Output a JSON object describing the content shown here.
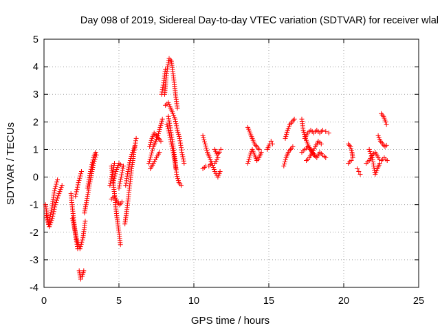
{
  "chart_data": {
    "type": "scatter",
    "title": "Day 098 of 2019, Sidereal Day-to-day VTEC variation (SDTVAR) for receiver wlal",
    "xlabel": "GPS time / hours",
    "ylabel": "SDTVAR / TECUs",
    "xlim": [
      0,
      25
    ],
    "ylim": [
      -4,
      5
    ],
    "grid": true,
    "marker": "+",
    "series_color": "#ff0000",
    "x_ticks": [
      0,
      5,
      10,
      15,
      20,
      25
    ],
    "x_tick_labels": [
      "0",
      "5",
      "10",
      "15",
      "20",
      "25"
    ],
    "y_ticks": [
      -4,
      -3,
      -2,
      -1,
      0,
      1,
      2,
      3,
      4,
      5
    ],
    "y_tick_labels": [
      "-4",
      "-3",
      "-2",
      "-1",
      "0",
      "1",
      "2",
      "3",
      "4",
      "5"
    ],
    "tracks": [
      [
        [
          0.1,
          -1.0
        ],
        [
          0.3,
          -1.7
        ],
        [
          0.5,
          -1.2
        ],
        [
          0.7,
          -0.5
        ],
        [
          0.9,
          -0.1
        ]
      ],
      [
        [
          0.15,
          -1.4
        ],
        [
          0.35,
          -1.8
        ],
        [
          0.55,
          -1.5
        ],
        [
          0.75,
          -1.0
        ],
        [
          1.0,
          -0.6
        ],
        [
          1.2,
          -0.3
        ]
      ],
      [
        [
          1.8,
          -0.6
        ],
        [
          1.95,
          -1.4
        ],
        [
          2.1,
          -2.1
        ],
        [
          2.25,
          -2.6
        ]
      ],
      [
        [
          1.9,
          -1.5
        ],
        [
          2.05,
          -1.9
        ],
        [
          2.2,
          -2.3
        ],
        [
          2.4,
          -2.6
        ],
        [
          2.6,
          -2.2
        ],
        [
          2.75,
          -1.6
        ]
      ],
      [
        [
          2.1,
          -0.7
        ],
        [
          2.3,
          -0.2
        ],
        [
          2.5,
          0.2
        ]
      ],
      [
        [
          2.35,
          -3.4
        ],
        [
          2.45,
          -3.7
        ],
        [
          2.55,
          -3.6
        ],
        [
          2.65,
          -3.4
        ]
      ],
      [
        [
          2.7,
          -1.3
        ],
        [
          2.9,
          -0.7
        ],
        [
          3.1,
          -0.1
        ],
        [
          3.3,
          0.5
        ],
        [
          3.5,
          0.8
        ]
      ],
      [
        [
          2.9,
          -0.4
        ],
        [
          3.1,
          0.2
        ],
        [
          3.3,
          0.7
        ],
        [
          3.45,
          0.9
        ]
      ],
      [
        [
          4.4,
          -0.3
        ],
        [
          4.55,
          0.1
        ],
        [
          4.7,
          0.5
        ]
      ],
      [
        [
          4.5,
          0.4
        ],
        [
          4.7,
          -0.6
        ],
        [
          4.85,
          -1.4
        ],
        [
          5.0,
          -2.0
        ],
        [
          5.1,
          -2.45
        ]
      ],
      [
        [
          4.6,
          -0.2
        ],
        [
          4.8,
          0.2
        ],
        [
          5.0,
          0.5
        ],
        [
          5.2,
          0.4
        ]
      ],
      [
        [
          4.5,
          -0.8
        ],
        [
          4.7,
          -0.7
        ],
        [
          4.9,
          -0.9
        ],
        [
          5.05,
          -1.0
        ],
        [
          5.2,
          -0.9
        ]
      ],
      [
        [
          5.0,
          -0.4
        ],
        [
          5.15,
          0.0
        ],
        [
          5.3,
          0.4
        ]
      ],
      [
        [
          5.4,
          -1.7
        ],
        [
          5.55,
          -1.1
        ],
        [
          5.7,
          -0.4
        ],
        [
          5.85,
          0.3
        ],
        [
          6.0,
          0.9
        ],
        [
          6.15,
          1.4
        ]
      ],
      [
        [
          5.45,
          -0.3
        ],
        [
          5.6,
          0.2
        ],
        [
          5.75,
          0.6
        ],
        [
          5.9,
          0.9
        ],
        [
          6.05,
          1.1
        ]
      ],
      [
        [
          7.0,
          0.5
        ],
        [
          7.15,
          0.8
        ],
        [
          7.3,
          1.1
        ],
        [
          7.45,
          1.3
        ],
        [
          7.6,
          1.5
        ],
        [
          7.75,
          1.8
        ],
        [
          7.9,
          2.1
        ]
      ],
      [
        [
          7.05,
          1.1
        ],
        [
          7.2,
          1.4
        ],
        [
          7.35,
          1.6
        ],
        [
          7.5,
          1.5
        ],
        [
          7.65,
          1.4
        ],
        [
          7.8,
          1.3
        ]
      ],
      [
        [
          7.1,
          0.3
        ],
        [
          7.3,
          0.5
        ],
        [
          7.5,
          0.7
        ],
        [
          7.7,
          0.9
        ]
      ],
      [
        [
          8.05,
          3.0
        ],
        [
          8.15,
          3.6
        ],
        [
          8.25,
          4.0
        ],
        [
          8.35,
          4.3
        ],
        [
          8.5,
          4.2
        ],
        [
          8.65,
          3.6
        ],
        [
          8.8,
          2.9
        ],
        [
          8.9,
          2.5
        ]
      ],
      [
        [
          8.1,
          2.6
        ],
        [
          8.3,
          2.7
        ],
        [
          8.45,
          2.5
        ],
        [
          8.6,
          2.3
        ],
        [
          8.75,
          2.1
        ],
        [
          8.9,
          1.7
        ],
        [
          9.05,
          1.4
        ],
        [
          9.2,
          0.9
        ],
        [
          9.35,
          0.5
        ]
      ],
      [
        [
          8.3,
          2.2
        ],
        [
          8.45,
          1.7
        ],
        [
          8.6,
          1.2
        ],
        [
          8.75,
          0.6
        ],
        [
          8.85,
          0.1
        ],
        [
          9.0,
          -0.2
        ],
        [
          9.15,
          -0.3
        ]
      ],
      [
        [
          8.2,
          1.9
        ],
        [
          8.35,
          1.6
        ],
        [
          8.5,
          1.2
        ],
        [
          8.65,
          0.8
        ],
        [
          8.8,
          0.3
        ]
      ],
      [
        [
          7.85,
          3.0
        ],
        [
          8.0,
          3.5
        ],
        [
          8.1,
          3.9
        ]
      ],
      [
        [
          10.6,
          1.5
        ],
        [
          10.75,
          1.2
        ],
        [
          10.9,
          0.9
        ],
        [
          11.05,
          0.7
        ],
        [
          11.2,
          0.5
        ],
        [
          11.4,
          0.5
        ],
        [
          11.6,
          0.7
        ]
      ],
      [
        [
          10.6,
          0.3
        ],
        [
          10.8,
          0.4
        ],
        [
          11.0,
          0.4
        ],
        [
          11.2,
          0.5
        ],
        [
          11.4,
          0.2
        ],
        [
          11.6,
          0.0
        ],
        [
          11.75,
          0.2
        ]
      ],
      [
        [
          11.4,
          1.0
        ],
        [
          11.55,
          0.8
        ],
        [
          11.7,
          0.9
        ],
        [
          11.8,
          1.0
        ]
      ],
      [
        [
          13.6,
          1.8
        ],
        [
          13.75,
          1.6
        ],
        [
          13.9,
          1.4
        ],
        [
          14.05,
          1.2
        ],
        [
          14.2,
          1.1
        ],
        [
          14.35,
          1.0
        ]
      ],
      [
        [
          13.6,
          0.5
        ],
        [
          13.75,
          0.8
        ],
        [
          13.9,
          1.0
        ],
        [
          14.05,
          0.8
        ],
        [
          14.2,
          0.6
        ],
        [
          14.35,
          0.7
        ],
        [
          14.5,
          0.9
        ]
      ],
      [
        [
          14.9,
          1.0
        ],
        [
          15.05,
          1.2
        ],
        [
          15.15,
          1.3
        ],
        [
          15.25,
          1.2
        ]
      ],
      [
        [
          16.0,
          0.4
        ],
        [
          16.15,
          0.7
        ],
        [
          16.3,
          0.9
        ],
        [
          16.45,
          1.0
        ],
        [
          16.6,
          1.1
        ]
      ],
      [
        [
          16.1,
          1.4
        ],
        [
          16.25,
          1.7
        ],
        [
          16.4,
          1.9
        ],
        [
          16.55,
          2.0
        ],
        [
          16.7,
          2.1
        ]
      ],
      [
        [
          17.2,
          2.1
        ],
        [
          17.3,
          1.7
        ],
        [
          17.45,
          1.4
        ],
        [
          17.6,
          1.2
        ],
        [
          17.75,
          1.0
        ],
        [
          17.9,
          0.9
        ],
        [
          18.05,
          0.8
        ]
      ],
      [
        [
          17.2,
          0.9
        ],
        [
          17.4,
          1.0
        ],
        [
          17.6,
          1.1
        ],
        [
          17.8,
          1.0
        ],
        [
          18.0,
          0.8
        ],
        [
          18.2,
          0.7
        ],
        [
          18.4,
          0.9
        ],
        [
          18.6,
          0.8
        ],
        [
          18.8,
          0.7
        ]
      ],
      [
        [
          17.4,
          1.4
        ],
        [
          17.6,
          1.6
        ],
        [
          17.8,
          1.7
        ],
        [
          18.0,
          1.6
        ],
        [
          18.2,
          1.7
        ],
        [
          18.4,
          1.6
        ],
        [
          18.6,
          1.7
        ],
        [
          18.8,
          1.65
        ],
        [
          19.0,
          1.6
        ]
      ],
      [
        [
          17.5,
          0.6
        ],
        [
          17.7,
          0.7
        ],
        [
          17.9,
          0.9
        ],
        [
          18.1,
          1.1
        ],
        [
          18.3,
          1.3
        ],
        [
          18.5,
          1.2
        ]
      ],
      [
        [
          20.3,
          1.2
        ],
        [
          20.45,
          1.1
        ],
        [
          20.55,
          0.9
        ],
        [
          20.6,
          0.7
        ]
      ],
      [
        [
          20.3,
          0.5
        ],
        [
          20.5,
          0.6
        ],
        [
          20.6,
          0.7
        ]
      ],
      [
        [
          20.9,
          0.3
        ],
        [
          21.0,
          0.2
        ],
        [
          21.1,
          0.1
        ]
      ],
      [
        [
          21.5,
          0.5
        ],
        [
          21.7,
          0.6
        ],
        [
          21.9,
          0.8
        ],
        [
          22.1,
          0.9
        ],
        [
          22.3,
          0.7
        ],
        [
          22.5,
          0.6
        ],
        [
          22.7,
          0.7
        ],
        [
          22.9,
          0.6
        ]
      ],
      [
        [
          21.7,
          1.0
        ],
        [
          21.9,
          0.7
        ],
        [
          22.0,
          0.4
        ],
        [
          22.1,
          0.1
        ],
        [
          22.25,
          0.3
        ],
        [
          22.4,
          0.5
        ]
      ],
      [
        [
          22.3,
          1.5
        ],
        [
          22.45,
          1.3
        ],
        [
          22.6,
          1.2
        ],
        [
          22.75,
          1.1
        ],
        [
          22.85,
          1.15
        ]
      ],
      [
        [
          22.5,
          2.3
        ],
        [
          22.65,
          2.2
        ],
        [
          22.8,
          2.0
        ],
        [
          22.85,
          1.9
        ]
      ]
    ]
  }
}
